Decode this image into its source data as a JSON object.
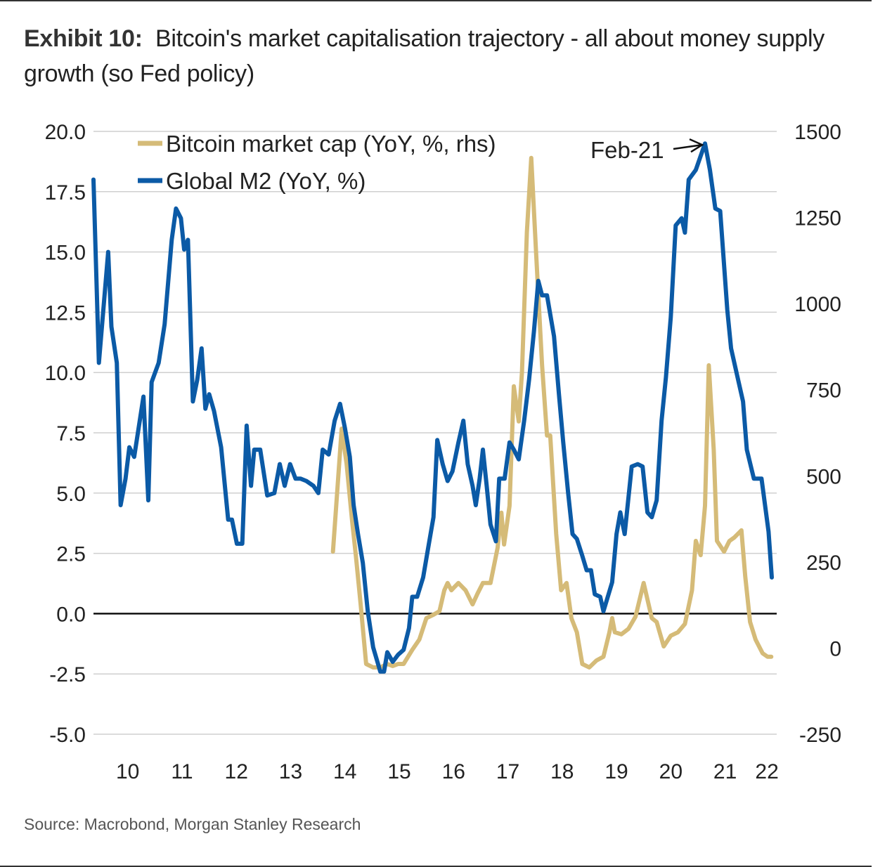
{
  "title": {
    "prefix": "Exhibit 10:",
    "text": "Bitcoin's market capitalisation trajectory - all about money supply growth (so Fed policy)"
  },
  "source": "Source: Macrobond, Morgan Stanley Research",
  "chart_data": {
    "type": "line",
    "title": "Bitcoin's market capitalisation trajectory - all about money supply growth (so Fed policy)",
    "grid": true,
    "legend_position": "top-left",
    "xlim": [
      2009.87,
      2022.45
    ],
    "x_ticks": [
      {
        "x": 2010.5,
        "label": "10"
      },
      {
        "x": 2011.5,
        "label": "11"
      },
      {
        "x": 2012.5,
        "label": "12"
      },
      {
        "x": 2013.5,
        "label": "13"
      },
      {
        "x": 2014.5,
        "label": "14"
      },
      {
        "x": 2015.5,
        "label": "15"
      },
      {
        "x": 2016.5,
        "label": "16"
      },
      {
        "x": 2017.5,
        "label": "17"
      },
      {
        "x": 2018.5,
        "label": "18"
      },
      {
        "x": 2019.5,
        "label": "19"
      },
      {
        "x": 2020.5,
        "label": "20"
      },
      {
        "x": 2021.5,
        "label": "21"
      },
      {
        "x": 2022.27,
        "label": "22"
      }
    ],
    "y_left": {
      "lim": [
        -5,
        20
      ],
      "ticks": [
        "20.0",
        "17.5",
        "15.0",
        "12.5",
        "10.0",
        "7.5",
        "5.0",
        "2.5",
        "0.0",
        "-2.5",
        "-5.0"
      ]
    },
    "y_right": {
      "lim": [
        -250,
        1500
      ],
      "ticks": [
        "1500",
        "1250",
        "1000",
        "750",
        "500",
        "250",
        "0",
        "-250"
      ]
    },
    "annotation": {
      "text": "Feb-21",
      "x": 2021.13,
      "y": 19.5
    },
    "colors": {
      "btc": "#d5bb78",
      "m2": "#0b5aa6",
      "zero": "#111111",
      "grid": "#cfcfcf"
    },
    "series": [
      {
        "name": "Bitcoin market cap (YoY, %, rhs)",
        "axis": "right",
        "color": "#d5bb78",
        "x": [
          2014.28,
          2014.44,
          2014.53,
          2014.63,
          2014.7,
          2014.79,
          2014.89,
          2015.02,
          2015.15,
          2015.28,
          2015.38,
          2015.48,
          2015.58,
          2015.74,
          2015.87,
          2016.0,
          2016.13,
          2016.24,
          2016.33,
          2016.39,
          2016.46,
          2016.52,
          2016.59,
          2016.72,
          2016.85,
          2016.94,
          2017.04,
          2017.18,
          2017.31,
          2017.38,
          2017.43,
          2017.53,
          2017.61,
          2017.7,
          2017.76,
          2017.85,
          2017.93,
          2018.02,
          2018.13,
          2018.22,
          2018.28,
          2018.39,
          2018.48,
          2018.58,
          2018.67,
          2018.77,
          2018.87,
          2019.0,
          2019.13,
          2019.26,
          2019.37,
          2019.42,
          2019.47,
          2019.59,
          2019.72,
          2019.85,
          2020.0,
          2020.15,
          2020.24,
          2020.37,
          2020.5,
          2020.63,
          2020.76,
          2020.89,
          2020.96,
          2021.05,
          2021.13,
          2021.2,
          2021.29,
          2021.35,
          2021.48,
          2021.58,
          2021.67,
          2021.8,
          2021.87,
          2021.96,
          2022.06,
          2022.19,
          2022.28,
          2022.35
        ],
        "values": [
          280,
          637,
          535,
          372,
          270,
          127,
          -46,
          -56,
          -56,
          -46,
          -52,
          -46,
          -46,
          -5,
          25,
          87,
          97,
          107,
          168,
          189,
          168,
          178,
          189,
          168,
          127,
          158,
          189,
          189,
          291,
          393,
          301,
          413,
          760,
          658,
          801,
          1208,
          1423,
          1147,
          821,
          617,
          617,
          331,
          168,
          189,
          87,
          46,
          -46,
          -56,
          -36,
          -25,
          46,
          87,
          46,
          40,
          56,
          91,
          189,
          87,
          76,
          5,
          36,
          46,
          70,
          168,
          311,
          270,
          413,
          821,
          576,
          311,
          280,
          311,
          321,
          342,
          209,
          76,
          25,
          -15,
          -25,
          -25
        ]
      },
      {
        "name": "Global M2 (YoY, %)",
        "axis": "left",
        "color": "#0b5aa6",
        "x": [
          2009.87,
          2009.97,
          2010.14,
          2010.2,
          2010.3,
          2010.37,
          2010.46,
          2010.53,
          2010.62,
          2010.79,
          2010.88,
          2010.94,
          2011.07,
          2011.18,
          2011.31,
          2011.39,
          2011.48,
          2011.54,
          2011.61,
          2011.7,
          2011.78,
          2011.86,
          2011.93,
          2012.0,
          2012.09,
          2012.22,
          2012.35,
          2012.42,
          2012.51,
          2012.61,
          2012.69,
          2012.77,
          2012.83,
          2012.94,
          2013.07,
          2013.2,
          2013.3,
          2013.39,
          2013.49,
          2013.59,
          2013.68,
          2013.79,
          2013.92,
          2014.01,
          2014.09,
          2014.2,
          2014.31,
          2014.41,
          2014.5,
          2014.59,
          2014.66,
          2014.74,
          2014.83,
          2014.92,
          2015.02,
          2015.15,
          2015.22,
          2015.28,
          2015.38,
          2015.48,
          2015.58,
          2015.68,
          2015.74,
          2015.83,
          2015.94,
          2016.03,
          2016.13,
          2016.2,
          2016.3,
          2016.39,
          2016.48,
          2016.59,
          2016.68,
          2016.76,
          2016.85,
          2016.91,
          2016.98,
          2017.04,
          2017.11,
          2017.18,
          2017.28,
          2017.34,
          2017.44,
          2017.53,
          2017.61,
          2017.7,
          2017.8,
          2017.89,
          2017.98,
          2018.06,
          2018.13,
          2018.22,
          2018.35,
          2018.44,
          2018.52,
          2018.61,
          2018.69,
          2018.77,
          2018.87,
          2018.95,
          2019.03,
          2019.1,
          2019.2,
          2019.26,
          2019.34,
          2019.42,
          2019.5,
          2019.57,
          2019.65,
          2019.78,
          2019.89,
          2019.98,
          2020.07,
          2020.15,
          2020.24,
          2020.33,
          2020.41,
          2020.5,
          2020.59,
          2020.7,
          2020.76,
          2020.83,
          2020.96,
          2021.13,
          2021.22,
          2021.32,
          2021.41,
          2021.54,
          2021.61,
          2021.74,
          2021.83,
          2021.9,
          2022.03,
          2022.17,
          2022.3,
          2022.36
        ],
        "values": [
          18.0,
          10.4,
          15.0,
          11.9,
          10.4,
          4.5,
          5.6,
          6.9,
          6.5,
          9.0,
          4.7,
          9.6,
          10.4,
          12.0,
          15.5,
          16.8,
          16.4,
          15.1,
          15.5,
          8.8,
          9.7,
          11.0,
          8.5,
          9.1,
          8.4,
          6.9,
          3.9,
          3.9,
          2.9,
          2.9,
          7.8,
          5.3,
          6.8,
          6.8,
          4.9,
          5.0,
          6.2,
          5.3,
          6.2,
          5.6,
          5.6,
          5.5,
          5.3,
          5.0,
          6.8,
          6.6,
          8.0,
          8.7,
          7.7,
          6.5,
          4.5,
          3.3,
          2.1,
          0.1,
          -1.4,
          -2.4,
          -2.4,
          -1.6,
          -2.0,
          -1.7,
          -1.5,
          -0.6,
          0.7,
          0.7,
          1.5,
          2.7,
          4.0,
          7.2,
          6.2,
          5.5,
          5.9,
          7.1,
          8.0,
          6.2,
          5.3,
          4.5,
          5.6,
          6.8,
          5.3,
          3.7,
          3.0,
          5.6,
          5.6,
          7.1,
          6.8,
          6.4,
          8.0,
          9.7,
          11.7,
          13.8,
          13.2,
          13.2,
          11.5,
          9.1,
          7.1,
          5.0,
          3.3,
          3.1,
          2.4,
          1.8,
          1.8,
          0.8,
          0.7,
          0.1,
          0.7,
          1.3,
          3.3,
          4.2,
          3.3,
          6.1,
          6.2,
          6.1,
          4.2,
          4.0,
          4.7,
          8.0,
          9.8,
          12.3,
          16.1,
          16.4,
          15.8,
          18.0,
          18.4,
          19.5,
          18.4,
          16.8,
          16.7,
          12.6,
          11.0,
          9.7,
          8.8,
          6.8,
          5.6,
          5.6,
          3.4,
          1.5
        ]
      }
    ]
  }
}
